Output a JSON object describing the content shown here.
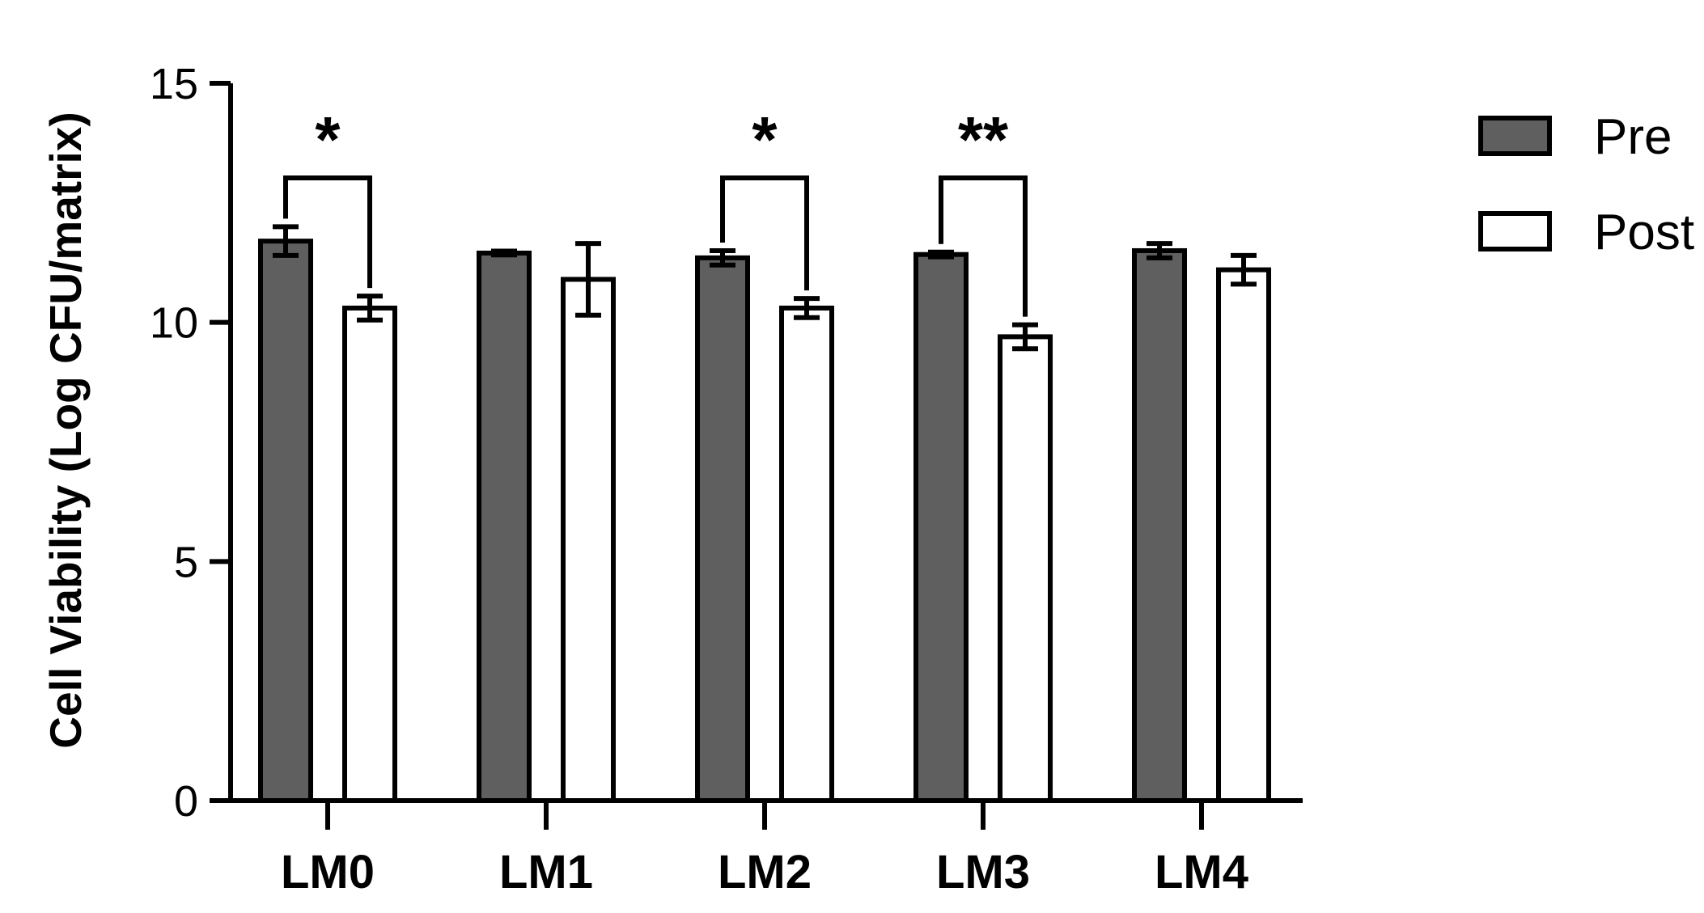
{
  "chart_data": {
    "type": "bar",
    "title": "",
    "xlabel": "",
    "ylabel": "Cell Viability (Log CFU/matrix)",
    "ylim": [
      0,
      15
    ],
    "yticks": [
      0,
      5,
      10,
      15
    ],
    "categories": [
      "LM0",
      "LM1",
      "LM2",
      "LM3",
      "LM4"
    ],
    "series": [
      {
        "name": "Pre",
        "color": "#5f5f5f",
        "values": [
          11.7,
          11.45,
          11.35,
          11.42,
          11.5
        ],
        "errors": [
          0.3,
          0.04,
          0.15,
          0.05,
          0.15
        ]
      },
      {
        "name": "Post",
        "color": "#ffffff",
        "values": [
          10.3,
          10.9,
          10.3,
          9.7,
          11.1
        ],
        "errors": [
          0.25,
          0.75,
          0.2,
          0.25,
          0.3
        ]
      }
    ],
    "significance": [
      {
        "category": "LM0",
        "label": "*"
      },
      {
        "category": "LM2",
        "label": "*"
      },
      {
        "category": "LM3",
        "label": "**"
      }
    ],
    "grid": false,
    "legend_position": "top-right"
  }
}
